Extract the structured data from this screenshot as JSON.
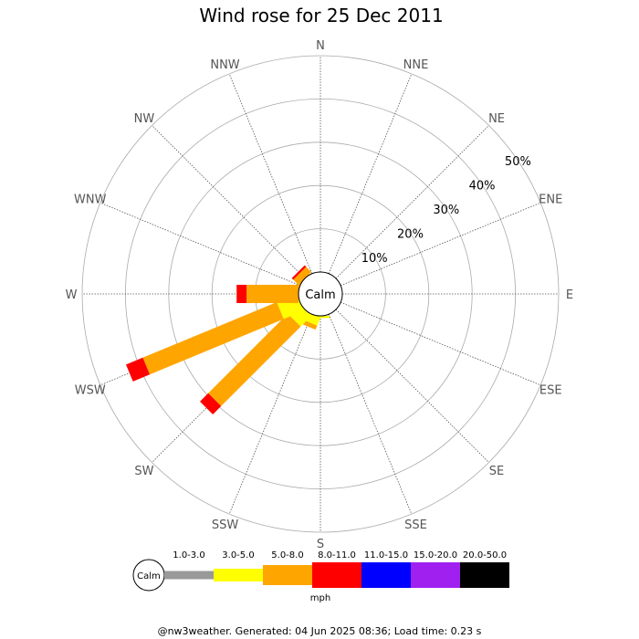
{
  "chart_data": {
    "type": "wind_rose",
    "title": "Wind rose for 25 Dec 2011",
    "directions": [
      "N",
      "NNE",
      "NE",
      "ENE",
      "E",
      "ESE",
      "SE",
      "SSE",
      "S",
      "SSW",
      "SW",
      "WSW",
      "W",
      "WNW",
      "NW",
      "NNW"
    ],
    "ring_labels": [
      "10%",
      "20%",
      "30%",
      "40%",
      "50%"
    ],
    "rmax_percent": 50,
    "center_label": "Calm",
    "unit": "mph",
    "speed_bins": [
      {
        "label": "Calm",
        "color": "#999999"
      },
      {
        "label": "1.0-3.0",
        "color": "#999999"
      },
      {
        "label": "3.0-5.0",
        "color": "#ffff00"
      },
      {
        "label": "5.0-8.0",
        "color": "#ffa500"
      },
      {
        "label": "8.0-11.0",
        "color": "#ff0000"
      },
      {
        "label": "11.0-15.0",
        "color": "#0000ff"
      },
      {
        "label": "15.0-20.0",
        "color": "#a020f0"
      },
      {
        "label": "20.0-50.0",
        "color": "#000000"
      }
    ],
    "series": [
      {
        "direction": "S",
        "values": [
          0,
          0.5,
          0,
          0,
          0,
          0,
          0
        ]
      },
      {
        "direction": "SSW",
        "values": [
          0,
          2.0,
          1.0,
          0,
          0,
          0,
          0
        ]
      },
      {
        "direction": "SW",
        "values": [
          0,
          3.5,
          26.0,
          2.7,
          0,
          0,
          0
        ]
      },
      {
        "direction": "WSW",
        "values": [
          0,
          5.0,
          33.5,
          4.2,
          0,
          0,
          0
        ]
      },
      {
        "direction": "W",
        "values": [
          0,
          0,
          12.0,
          2.3,
          0,
          0,
          0
        ]
      },
      {
        "direction": "WNW",
        "values": [
          0,
          0,
          0.5,
          0,
          0,
          0,
          0
        ]
      },
      {
        "direction": "NW",
        "values": [
          0,
          0,
          1.7,
          0.5,
          0,
          0,
          0
        ]
      }
    ]
  },
  "footer": "@nw3weather. Generated: 04 Jun 2025 08:36; Load time: 0.23 s"
}
